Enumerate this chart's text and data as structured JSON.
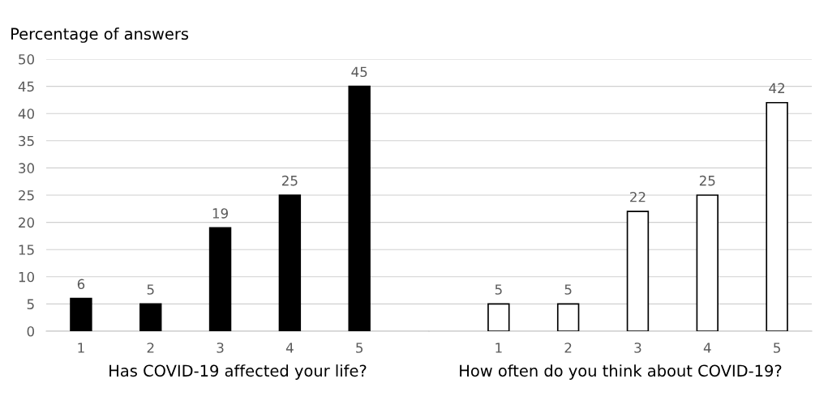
{
  "chart_data": [
    {
      "type": "bar",
      "categories": [
        "1",
        "2",
        "3",
        "4",
        "5"
      ],
      "series": [
        {
          "color": "#000000",
          "values": [
            6,
            5,
            19,
            25,
            45
          ]
        }
      ],
      "ylim": [
        0,
        50
      ],
      "yticks": [
        0,
        5,
        10,
        15,
        20,
        25,
        30,
        35,
        40,
        45,
        50
      ],
      "grid": "y",
      "data_labels": true,
      "xlabel": "Has COVID-19 affected your life?",
      "ylabel": "Percentage of answers"
    },
    {
      "type": "bar",
      "categories": [
        "1",
        "2",
        "3",
        "4",
        "5"
      ],
      "series": [
        {
          "color": "#ffffff",
          "values": [
            5,
            5,
            22,
            25,
            42
          ]
        }
      ],
      "ylim": [
        0,
        50
      ],
      "yticks": [
        0,
        5,
        10,
        15,
        20,
        25,
        30,
        35,
        40,
        45,
        50
      ],
      "grid": "y",
      "data_labels": true,
      "xlabel": "How often do you think about COVID-19?",
      "tick_labels": "x"
    }
  ]
}
